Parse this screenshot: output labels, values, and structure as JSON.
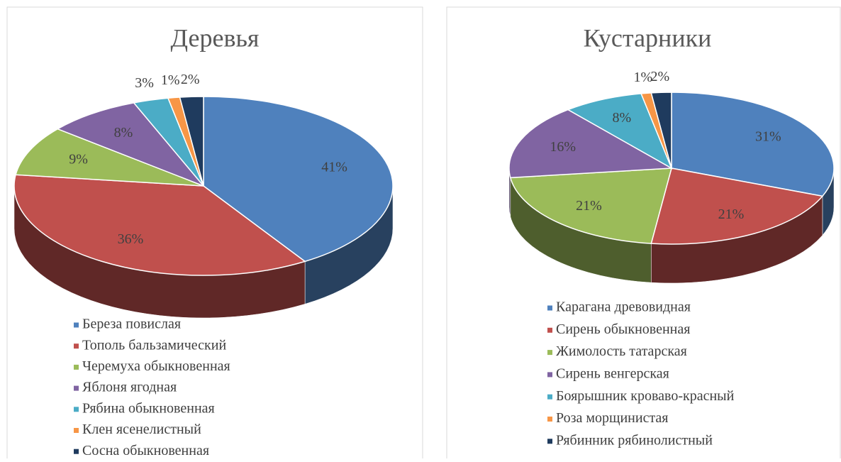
{
  "chart_data": [
    {
      "type": "pie",
      "title": "Деревья",
      "categories": [
        "Береза повислая",
        "Тополь бальзамический",
        "Черемуха обыкновенная",
        "Яблоня ягодная",
        "Рябина обыкновенная",
        "Клен ясенелистный",
        "Сосна обыкновенная"
      ],
      "values": [
        41,
        36,
        9,
        8,
        3,
        1,
        2
      ],
      "value_labels": [
        "41%",
        "36%",
        "9%",
        "8%",
        "3%",
        "1%",
        "2%"
      ],
      "colors": [
        "#4f81bd",
        "#c0504d",
        "#9bbb59",
        "#8064a2",
        "#4bacc6",
        "#f79646",
        "#1f3b5e"
      ]
    },
    {
      "type": "pie",
      "title": "Кустарники",
      "categories": [
        "Карагана древовидная",
        "Сирень обыкновенная",
        "Жимолость татарская",
        "Сирень венгерская",
        "Боярышник кроваво-красный",
        "Роза морщинистая",
        "Рябинник рябинолистный"
      ],
      "values": [
        31,
        21,
        21,
        16,
        8,
        1,
        2
      ],
      "value_labels": [
        "31%",
        "21%",
        "21%",
        "16%",
        "8%",
        "1%",
        "2%"
      ],
      "colors": [
        "#4f81bd",
        "#c0504d",
        "#9bbb59",
        "#8064a2",
        "#4bacc6",
        "#f79646",
        "#1f3b5e"
      ]
    }
  ]
}
